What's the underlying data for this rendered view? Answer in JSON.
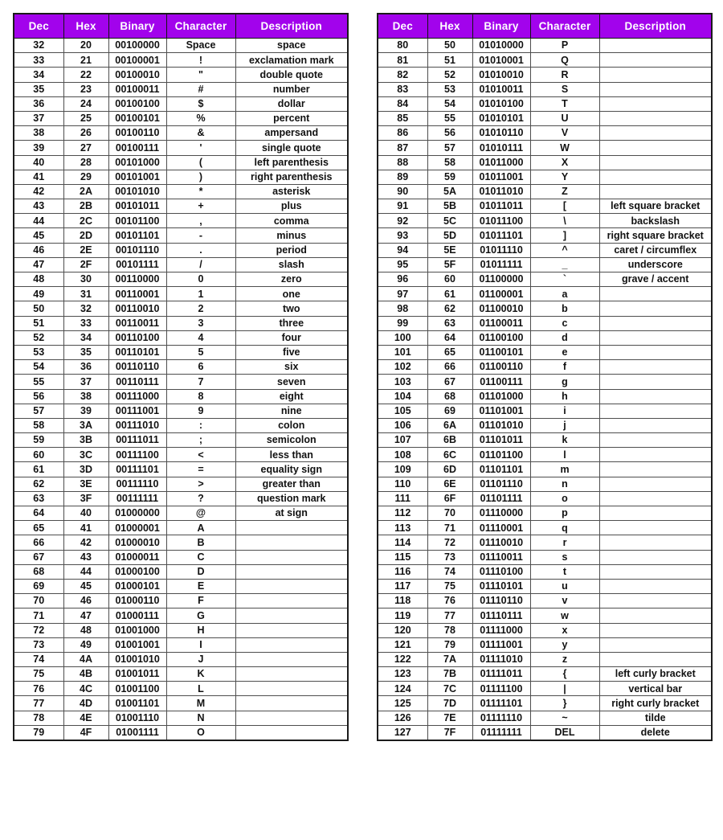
{
  "colors": {
    "header_bg": "#a203ec",
    "header_text": "#ffffff",
    "border_outer": "#1b1b1b",
    "border_inner": "#4e4e4e",
    "cell_text": "#111111",
    "page_bg": "#ffffff"
  },
  "tables": [
    {
      "name": "ascii-table-32-79",
      "headers": [
        "Dec",
        "Hex",
        "Binary",
        "Character",
        "Description"
      ],
      "rows": [
        [
          "32",
          "20",
          "00100000",
          "Space",
          "space"
        ],
        [
          "33",
          "21",
          "00100001",
          "!",
          "exclamation mark"
        ],
        [
          "34",
          "22",
          "00100010",
          "\"",
          "double quote"
        ],
        [
          "35",
          "23",
          "00100011",
          "#",
          "number"
        ],
        [
          "36",
          "24",
          "00100100",
          "$",
          "dollar"
        ],
        [
          "37",
          "25",
          "00100101",
          "%",
          "percent"
        ],
        [
          "38",
          "26",
          "00100110",
          "&",
          "ampersand"
        ],
        [
          "39",
          "27",
          "00100111",
          "'",
          "single quote"
        ],
        [
          "40",
          "28",
          "00101000",
          "(",
          "left parenthesis"
        ],
        [
          "41",
          "29",
          "00101001",
          ")",
          "right parenthesis"
        ],
        [
          "42",
          "2A",
          "00101010",
          "*",
          "asterisk"
        ],
        [
          "43",
          "2B",
          "00101011",
          "+",
          "plus"
        ],
        [
          "44",
          "2C",
          "00101100",
          ",",
          "comma"
        ],
        [
          "45",
          "2D",
          "00101101",
          "-",
          "minus"
        ],
        [
          "46",
          "2E",
          "00101110",
          ".",
          "period"
        ],
        [
          "47",
          "2F",
          "00101111",
          "/",
          "slash"
        ],
        [
          "48",
          "30",
          "00110000",
          "0",
          "zero"
        ],
        [
          "49",
          "31",
          "00110001",
          "1",
          "one"
        ],
        [
          "50",
          "32",
          "00110010",
          "2",
          "two"
        ],
        [
          "51",
          "33",
          "00110011",
          "3",
          "three"
        ],
        [
          "52",
          "34",
          "00110100",
          "4",
          "four"
        ],
        [
          "53",
          "35",
          "00110101",
          "5",
          "five"
        ],
        [
          "54",
          "36",
          "00110110",
          "6",
          "six"
        ],
        [
          "55",
          "37",
          "00110111",
          "7",
          "seven"
        ],
        [
          "56",
          "38",
          "00111000",
          "8",
          "eight"
        ],
        [
          "57",
          "39",
          "00111001",
          "9",
          "nine"
        ],
        [
          "58",
          "3A",
          "00111010",
          ":",
          "colon"
        ],
        [
          "59",
          "3B",
          "00111011",
          ";",
          "semicolon"
        ],
        [
          "60",
          "3C",
          "00111100",
          "<",
          "less than"
        ],
        [
          "61",
          "3D",
          "00111101",
          "=",
          "equality sign"
        ],
        [
          "62",
          "3E",
          "00111110",
          ">",
          "greater than"
        ],
        [
          "63",
          "3F",
          "00111111",
          "?",
          "question mark"
        ],
        [
          "64",
          "40",
          "01000000",
          "@",
          "at sign"
        ],
        [
          "65",
          "41",
          "01000001",
          "A",
          ""
        ],
        [
          "66",
          "42",
          "01000010",
          "B",
          ""
        ],
        [
          "67",
          "43",
          "01000011",
          "C",
          ""
        ],
        [
          "68",
          "44",
          "01000100",
          "D",
          ""
        ],
        [
          "69",
          "45",
          "01000101",
          "E",
          ""
        ],
        [
          "70",
          "46",
          "01000110",
          "F",
          ""
        ],
        [
          "71",
          "47",
          "01000111",
          "G",
          ""
        ],
        [
          "72",
          "48",
          "01001000",
          "H",
          ""
        ],
        [
          "73",
          "49",
          "01001001",
          "I",
          ""
        ],
        [
          "74",
          "4A",
          "01001010",
          "J",
          ""
        ],
        [
          "75",
          "4B",
          "01001011",
          "K",
          ""
        ],
        [
          "76",
          "4C",
          "01001100",
          "L",
          ""
        ],
        [
          "77",
          "4D",
          "01001101",
          "M",
          ""
        ],
        [
          "78",
          "4E",
          "01001110",
          "N",
          ""
        ],
        [
          "79",
          "4F",
          "01001111",
          "O",
          ""
        ]
      ]
    },
    {
      "name": "ascii-table-80-127",
      "headers": [
        "Dec",
        "Hex",
        "Binary",
        "Character",
        "Description"
      ],
      "rows": [
        [
          "80",
          "50",
          "01010000",
          "P",
          ""
        ],
        [
          "81",
          "51",
          "01010001",
          "Q",
          ""
        ],
        [
          "82",
          "52",
          "01010010",
          "R",
          ""
        ],
        [
          "83",
          "53",
          "01010011",
          "S",
          ""
        ],
        [
          "84",
          "54",
          "01010100",
          "T",
          ""
        ],
        [
          "85",
          "55",
          "01010101",
          "U",
          ""
        ],
        [
          "86",
          "56",
          "01010110",
          "V",
          ""
        ],
        [
          "87",
          "57",
          "01010111",
          "W",
          ""
        ],
        [
          "88",
          "58",
          "01011000",
          "X",
          ""
        ],
        [
          "89",
          "59",
          "01011001",
          "Y",
          ""
        ],
        [
          "90",
          "5A",
          "01011010",
          "Z",
          ""
        ],
        [
          "91",
          "5B",
          "01011011",
          "[",
          "left square bracket"
        ],
        [
          "92",
          "5C",
          "01011100",
          "\\",
          "backslash"
        ],
        [
          "93",
          "5D",
          "01011101",
          "]",
          "right square bracket"
        ],
        [
          "94",
          "5E",
          "01011110",
          "^",
          "caret / circumflex"
        ],
        [
          "95",
          "5F",
          "01011111",
          "_",
          "underscore"
        ],
        [
          "96",
          "60",
          "01100000",
          "`",
          "grave / accent"
        ],
        [
          "97",
          "61",
          "01100001",
          "a",
          ""
        ],
        [
          "98",
          "62",
          "01100010",
          "b",
          ""
        ],
        [
          "99",
          "63",
          "01100011",
          "c",
          ""
        ],
        [
          "100",
          "64",
          "01100100",
          "d",
          ""
        ],
        [
          "101",
          "65",
          "01100101",
          "e",
          ""
        ],
        [
          "102",
          "66",
          "01100110",
          "f",
          ""
        ],
        [
          "103",
          "67",
          "01100111",
          "g",
          ""
        ],
        [
          "104",
          "68",
          "01101000",
          "h",
          ""
        ],
        [
          "105",
          "69",
          "01101001",
          "i",
          ""
        ],
        [
          "106",
          "6A",
          "01101010",
          "j",
          ""
        ],
        [
          "107",
          "6B",
          "01101011",
          "k",
          ""
        ],
        [
          "108",
          "6C",
          "01101100",
          "l",
          ""
        ],
        [
          "109",
          "6D",
          "01101101",
          "m",
          ""
        ],
        [
          "110",
          "6E",
          "01101110",
          "n",
          ""
        ],
        [
          "111",
          "6F",
          "01101111",
          "o",
          ""
        ],
        [
          "112",
          "70",
          "01110000",
          "p",
          ""
        ],
        [
          "113",
          "71",
          "01110001",
          "q",
          ""
        ],
        [
          "114",
          "72",
          "01110010",
          "r",
          ""
        ],
        [
          "115",
          "73",
          "01110011",
          "s",
          ""
        ],
        [
          "116",
          "74",
          "01110100",
          "t",
          ""
        ],
        [
          "117",
          "75",
          "01110101",
          "u",
          ""
        ],
        [
          "118",
          "76",
          "01110110",
          "v",
          ""
        ],
        [
          "119",
          "77",
          "01110111",
          "w",
          ""
        ],
        [
          "120",
          "78",
          "01111000",
          "x",
          ""
        ],
        [
          "121",
          "79",
          "01111001",
          "y",
          ""
        ],
        [
          "122",
          "7A",
          "01111010",
          "z",
          ""
        ],
        [
          "123",
          "7B",
          "01111011",
          "{",
          "left curly bracket"
        ],
        [
          "124",
          "7C",
          "01111100",
          "|",
          "vertical bar"
        ],
        [
          "125",
          "7D",
          "01111101",
          "}",
          "right curly bracket"
        ],
        [
          "126",
          "7E",
          "01111110",
          "~",
          "tilde"
        ],
        [
          "127",
          "7F",
          "01111111",
          "DEL",
          "delete"
        ]
      ]
    }
  ]
}
